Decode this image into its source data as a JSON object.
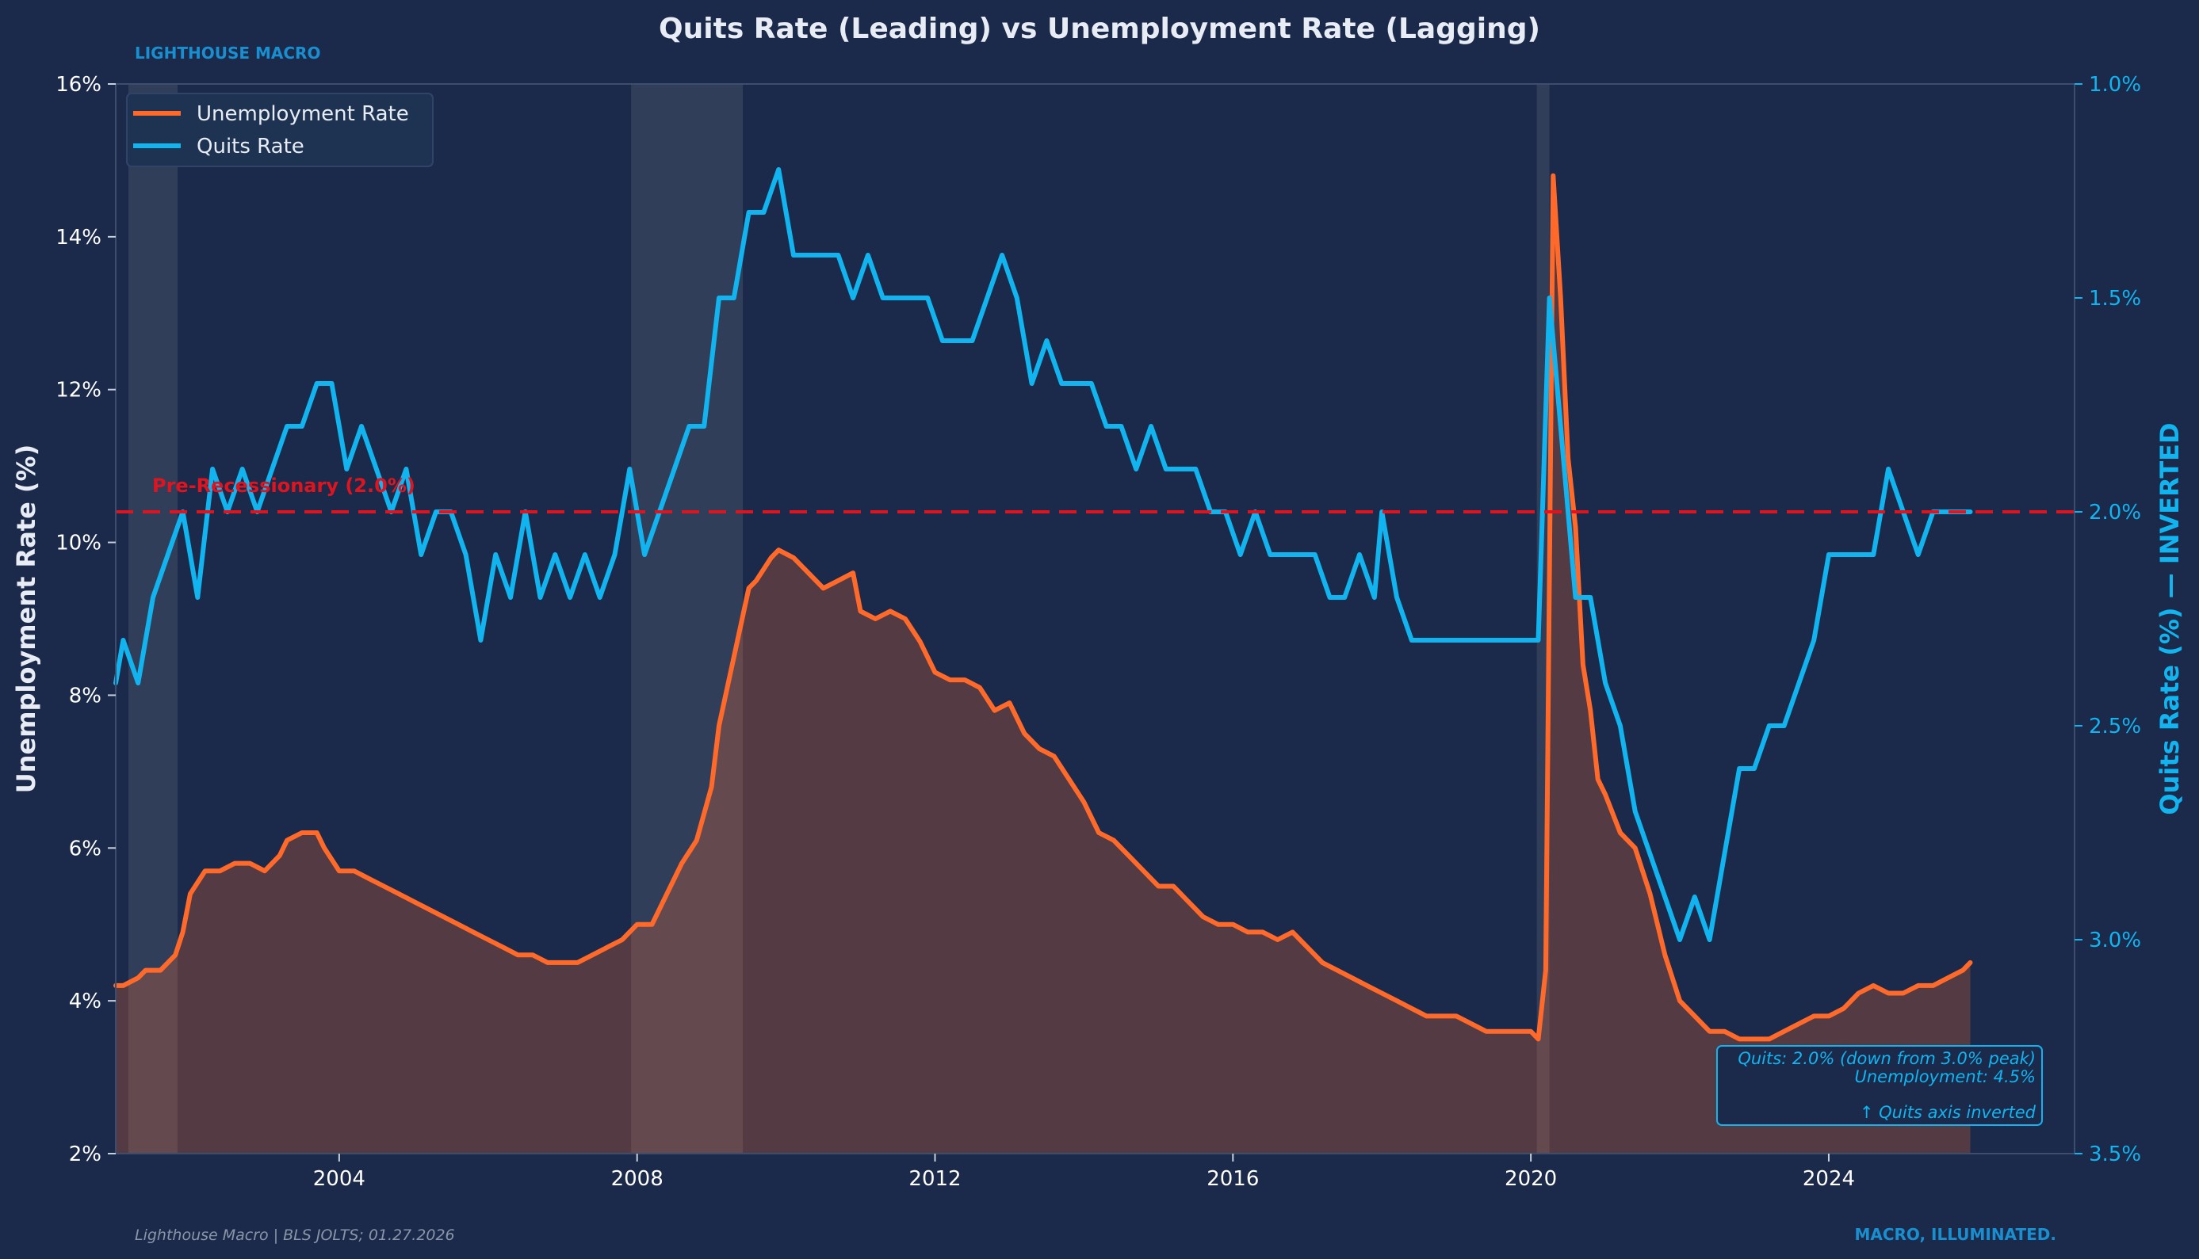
{
  "header": {
    "title": "Quits Rate (Leading) vs Unemployment Rate (Lagging)",
    "brand": "LIGHTHOUSE MACRO"
  },
  "footer": {
    "source": "Lighthouse Macro | BLS JOLTS; 01.27.2026",
    "tagline": "MACRO, ILLUMINATED."
  },
  "colors": {
    "background": "#1b2a4a",
    "unemployment": "#ff6a2b",
    "quits": "#12b4f0",
    "threshold": "#e0141e",
    "recession_band": "#3a4560",
    "brand": "#1a8fd0",
    "text": "#ffffff"
  },
  "chart_data": {
    "type": "line",
    "title": "Quits Rate (Leading) vs Unemployment Rate (Lagging)",
    "xlim": [
      2001.0,
      2027.3
    ],
    "x_ticks": [
      2004,
      2008,
      2012,
      2016,
      2020,
      2024
    ],
    "x_tick_labels": [
      "2004",
      "2008",
      "2012",
      "2016",
      "2020",
      "2024"
    ],
    "left_axis": {
      "label": "Unemployment Rate (%)",
      "ylim": [
        2,
        16
      ],
      "ticks": [
        2,
        4,
        6,
        8,
        10,
        12,
        14,
        16
      ],
      "tick_labels": [
        "2%",
        "4%",
        "6%",
        "8%",
        "10%",
        "12%",
        "14%",
        "16%"
      ]
    },
    "right_axis": {
      "label": "Quits Rate (%) — INVERTED",
      "ylim": [
        3.5,
        1.0
      ],
      "inverted": true,
      "ticks": [
        1.0,
        1.5,
        2.0,
        2.5,
        3.0,
        3.5
      ],
      "tick_labels": [
        "1.0%",
        "1.5%",
        "2.0%",
        "2.5%",
        "3.0%",
        "3.5%"
      ]
    },
    "legend": {
      "placement": "top-left",
      "entries": [
        "Unemployment Rate",
        "Quits Rate"
      ]
    },
    "grid": false,
    "recessions": [
      [
        2001.17,
        2001.83
      ],
      [
        2007.92,
        2009.42
      ],
      [
        2020.08,
        2020.25
      ]
    ],
    "threshold": {
      "axis": "right",
      "value": 2.0,
      "label": "Pre-Recessionary (2.0%)"
    },
    "annotation": {
      "lines": [
        "Quits: 2.0% (down from 3.0% peak)",
        "Unemployment: 4.5%",
        "",
        "↑ Quits axis inverted"
      ]
    },
    "series": [
      {
        "name": "Unemployment Rate",
        "axis": "left",
        "filled": true,
        "points": [
          [
            2001.0,
            4.2
          ],
          [
            2001.1,
            4.2
          ],
          [
            2001.3,
            4.3
          ],
          [
            2001.4,
            4.4
          ],
          [
            2001.6,
            4.4
          ],
          [
            2001.8,
            4.6
          ],
          [
            2001.9,
            4.9
          ],
          [
            2002.0,
            5.4
          ],
          [
            2002.2,
            5.7
          ],
          [
            2002.4,
            5.7
          ],
          [
            2002.6,
            5.8
          ],
          [
            2002.8,
            5.8
          ],
          [
            2003.0,
            5.7
          ],
          [
            2003.2,
            5.9
          ],
          [
            2003.3,
            6.1
          ],
          [
            2003.5,
            6.2
          ],
          [
            2003.7,
            6.2
          ],
          [
            2003.8,
            6.0
          ],
          [
            2004.0,
            5.7
          ],
          [
            2004.2,
            5.7
          ],
          [
            2004.4,
            5.6
          ],
          [
            2004.6,
            5.5
          ],
          [
            2004.8,
            5.4
          ],
          [
            2005.0,
            5.3
          ],
          [
            2005.2,
            5.2
          ],
          [
            2005.4,
            5.1
          ],
          [
            2005.6,
            5.0
          ],
          [
            2005.8,
            4.9
          ],
          [
            2006.0,
            4.8
          ],
          [
            2006.2,
            4.7
          ],
          [
            2006.4,
            4.6
          ],
          [
            2006.6,
            4.6
          ],
          [
            2006.8,
            4.5
          ],
          [
            2007.0,
            4.5
          ],
          [
            2007.2,
            4.5
          ],
          [
            2007.4,
            4.6
          ],
          [
            2007.6,
            4.7
          ],
          [
            2007.8,
            4.8
          ],
          [
            2008.0,
            5.0
          ],
          [
            2008.2,
            5.0
          ],
          [
            2008.4,
            5.4
          ],
          [
            2008.6,
            5.8
          ],
          [
            2008.8,
            6.1
          ],
          [
            2009.0,
            6.8
          ],
          [
            2009.1,
            7.6
          ],
          [
            2009.3,
            8.5
          ],
          [
            2009.5,
            9.4
          ],
          [
            2009.6,
            9.5
          ],
          [
            2009.8,
            9.8
          ],
          [
            2009.9,
            9.9
          ],
          [
            2010.1,
            9.8
          ],
          [
            2010.3,
            9.6
          ],
          [
            2010.5,
            9.4
          ],
          [
            2010.7,
            9.5
          ],
          [
            2010.9,
            9.6
          ],
          [
            2011.0,
            9.1
          ],
          [
            2011.2,
            9.0
          ],
          [
            2011.4,
            9.1
          ],
          [
            2011.6,
            9.0
          ],
          [
            2011.8,
            8.7
          ],
          [
            2012.0,
            8.3
          ],
          [
            2012.2,
            8.2
          ],
          [
            2012.4,
            8.2
          ],
          [
            2012.6,
            8.1
          ],
          [
            2012.8,
            7.8
          ],
          [
            2013.0,
            7.9
          ],
          [
            2013.2,
            7.5
          ],
          [
            2013.4,
            7.3
          ],
          [
            2013.6,
            7.2
          ],
          [
            2013.8,
            6.9
          ],
          [
            2014.0,
            6.6
          ],
          [
            2014.2,
            6.2
          ],
          [
            2014.4,
            6.1
          ],
          [
            2014.6,
            5.9
          ],
          [
            2014.8,
            5.7
          ],
          [
            2015.0,
            5.5
          ],
          [
            2015.2,
            5.5
          ],
          [
            2015.4,
            5.3
          ],
          [
            2015.6,
            5.1
          ],
          [
            2015.8,
            5.0
          ],
          [
            2016.0,
            5.0
          ],
          [
            2016.2,
            4.9
          ],
          [
            2016.4,
            4.9
          ],
          [
            2016.6,
            4.8
          ],
          [
            2016.8,
            4.9
          ],
          [
            2017.0,
            4.7
          ],
          [
            2017.2,
            4.5
          ],
          [
            2017.4,
            4.4
          ],
          [
            2017.6,
            4.3
          ],
          [
            2017.8,
            4.2
          ],
          [
            2018.0,
            4.1
          ],
          [
            2018.2,
            4.0
          ],
          [
            2018.4,
            3.9
          ],
          [
            2018.6,
            3.8
          ],
          [
            2018.8,
            3.8
          ],
          [
            2019.0,
            3.8
          ],
          [
            2019.2,
            3.7
          ],
          [
            2019.4,
            3.6
          ],
          [
            2019.6,
            3.6
          ],
          [
            2019.8,
            3.6
          ],
          [
            2020.0,
            3.6
          ],
          [
            2020.1,
            3.5
          ],
          [
            2020.2,
            4.4
          ],
          [
            2020.3,
            14.8
          ],
          [
            2020.4,
            13.2
          ],
          [
            2020.5,
            11.1
          ],
          [
            2020.6,
            10.2
          ],
          [
            2020.7,
            8.4
          ],
          [
            2020.8,
            7.8
          ],
          [
            2020.9,
            6.9
          ],
          [
            2021.0,
            6.7
          ],
          [
            2021.2,
            6.2
          ],
          [
            2021.4,
            6.0
          ],
          [
            2021.6,
            5.4
          ],
          [
            2021.8,
            4.6
          ],
          [
            2022.0,
            4.0
          ],
          [
            2022.2,
            3.8
          ],
          [
            2022.4,
            3.6
          ],
          [
            2022.6,
            3.6
          ],
          [
            2022.8,
            3.5
          ],
          [
            2023.0,
            3.5
          ],
          [
            2023.2,
            3.5
          ],
          [
            2023.4,
            3.6
          ],
          [
            2023.6,
            3.7
          ],
          [
            2023.8,
            3.8
          ],
          [
            2024.0,
            3.8
          ],
          [
            2024.2,
            3.9
          ],
          [
            2024.4,
            4.1
          ],
          [
            2024.6,
            4.2
          ],
          [
            2024.8,
            4.1
          ],
          [
            2025.0,
            4.1
          ],
          [
            2025.2,
            4.2
          ],
          [
            2025.4,
            4.2
          ],
          [
            2025.6,
            4.3
          ],
          [
            2025.8,
            4.4
          ],
          [
            2025.9,
            4.5
          ]
        ]
      },
      {
        "name": "Quits Rate",
        "axis": "right",
        "filled": false,
        "points": [
          [
            2001.0,
            2.4
          ],
          [
            2001.1,
            2.3
          ],
          [
            2001.3,
            2.4
          ],
          [
            2001.5,
            2.2
          ],
          [
            2001.7,
            2.1
          ],
          [
            2001.9,
            2.0
          ],
          [
            2002.1,
            2.2
          ],
          [
            2002.3,
            1.9
          ],
          [
            2002.5,
            2.0
          ],
          [
            2002.7,
            1.9
          ],
          [
            2002.9,
            2.0
          ],
          [
            2003.1,
            1.9
          ],
          [
            2003.3,
            1.8
          ],
          [
            2003.5,
            1.8
          ],
          [
            2003.7,
            1.7
          ],
          [
            2003.9,
            1.7
          ],
          [
            2004.1,
            1.9
          ],
          [
            2004.3,
            1.8
          ],
          [
            2004.5,
            1.9
          ],
          [
            2004.7,
            2.0
          ],
          [
            2004.9,
            1.9
          ],
          [
            2005.1,
            2.1
          ],
          [
            2005.3,
            2.0
          ],
          [
            2005.5,
            2.0
          ],
          [
            2005.7,
            2.1
          ],
          [
            2005.9,
            2.3
          ],
          [
            2006.1,
            2.1
          ],
          [
            2006.3,
            2.2
          ],
          [
            2006.5,
            2.0
          ],
          [
            2006.7,
            2.2
          ],
          [
            2006.9,
            2.1
          ],
          [
            2007.1,
            2.2
          ],
          [
            2007.3,
            2.1
          ],
          [
            2007.5,
            2.2
          ],
          [
            2007.7,
            2.1
          ],
          [
            2007.9,
            1.9
          ],
          [
            2008.1,
            2.1
          ],
          [
            2008.3,
            2.0
          ],
          [
            2008.5,
            1.9
          ],
          [
            2008.7,
            1.8
          ],
          [
            2008.9,
            1.8
          ],
          [
            2009.1,
            1.5
          ],
          [
            2009.3,
            1.5
          ],
          [
            2009.5,
            1.3
          ],
          [
            2009.7,
            1.3
          ],
          [
            2009.9,
            1.2
          ],
          [
            2010.1,
            1.4
          ],
          [
            2010.3,
            1.4
          ],
          [
            2010.5,
            1.4
          ],
          [
            2010.7,
            1.4
          ],
          [
            2010.9,
            1.5
          ],
          [
            2011.1,
            1.4
          ],
          [
            2011.3,
            1.5
          ],
          [
            2011.5,
            1.5
          ],
          [
            2011.7,
            1.5
          ],
          [
            2011.9,
            1.5
          ],
          [
            2012.1,
            1.6
          ],
          [
            2012.3,
            1.6
          ],
          [
            2012.5,
            1.6
          ],
          [
            2012.7,
            1.5
          ],
          [
            2012.9,
            1.4
          ],
          [
            2013.1,
            1.5
          ],
          [
            2013.3,
            1.7
          ],
          [
            2013.5,
            1.6
          ],
          [
            2013.7,
            1.7
          ],
          [
            2013.9,
            1.7
          ],
          [
            2014.1,
            1.7
          ],
          [
            2014.3,
            1.8
          ],
          [
            2014.5,
            1.8
          ],
          [
            2014.7,
            1.9
          ],
          [
            2014.9,
            1.8
          ],
          [
            2015.1,
            1.9
          ],
          [
            2015.3,
            1.9
          ],
          [
            2015.5,
            1.9
          ],
          [
            2015.7,
            2.0
          ],
          [
            2015.9,
            2.0
          ],
          [
            2016.1,
            2.1
          ],
          [
            2016.3,
            2.0
          ],
          [
            2016.5,
            2.1
          ],
          [
            2016.7,
            2.1
          ],
          [
            2016.9,
            2.1
          ],
          [
            2017.1,
            2.1
          ],
          [
            2017.3,
            2.2
          ],
          [
            2017.5,
            2.2
          ],
          [
            2017.7,
            2.1
          ],
          [
            2017.9,
            2.2
          ],
          [
            2018.0,
            2.0
          ],
          [
            2018.2,
            2.2
          ],
          [
            2018.4,
            2.3
          ],
          [
            2018.6,
            2.3
          ],
          [
            2018.8,
            2.3
          ],
          [
            2019.0,
            2.3
          ],
          [
            2019.2,
            2.3
          ],
          [
            2019.4,
            2.3
          ],
          [
            2019.6,
            2.3
          ],
          [
            2019.8,
            2.3
          ],
          [
            2020.0,
            2.3
          ],
          [
            2020.1,
            2.3
          ],
          [
            2020.25,
            1.5
          ],
          [
            2020.4,
            1.8
          ],
          [
            2020.5,
            2.0
          ],
          [
            2020.6,
            2.2
          ],
          [
            2020.8,
            2.2
          ],
          [
            2021.0,
            2.4
          ],
          [
            2021.2,
            2.5
          ],
          [
            2021.4,
            2.7
          ],
          [
            2021.6,
            2.8
          ],
          [
            2021.8,
            2.9
          ],
          [
            2022.0,
            3.0
          ],
          [
            2022.2,
            2.9
          ],
          [
            2022.4,
            3.0
          ],
          [
            2022.6,
            2.8
          ],
          [
            2022.8,
            2.6
          ],
          [
            2023.0,
            2.6
          ],
          [
            2023.2,
            2.5
          ],
          [
            2023.4,
            2.5
          ],
          [
            2023.6,
            2.4
          ],
          [
            2023.8,
            2.3
          ],
          [
            2024.0,
            2.1
          ],
          [
            2024.2,
            2.1
          ],
          [
            2024.4,
            2.1
          ],
          [
            2024.6,
            2.1
          ],
          [
            2024.8,
            1.9
          ],
          [
            2025.0,
            2.0
          ],
          [
            2025.2,
            2.1
          ],
          [
            2025.4,
            2.0
          ],
          [
            2025.6,
            2.0
          ],
          [
            2025.8,
            2.0
          ],
          [
            2025.9,
            2.0
          ]
        ]
      }
    ]
  }
}
